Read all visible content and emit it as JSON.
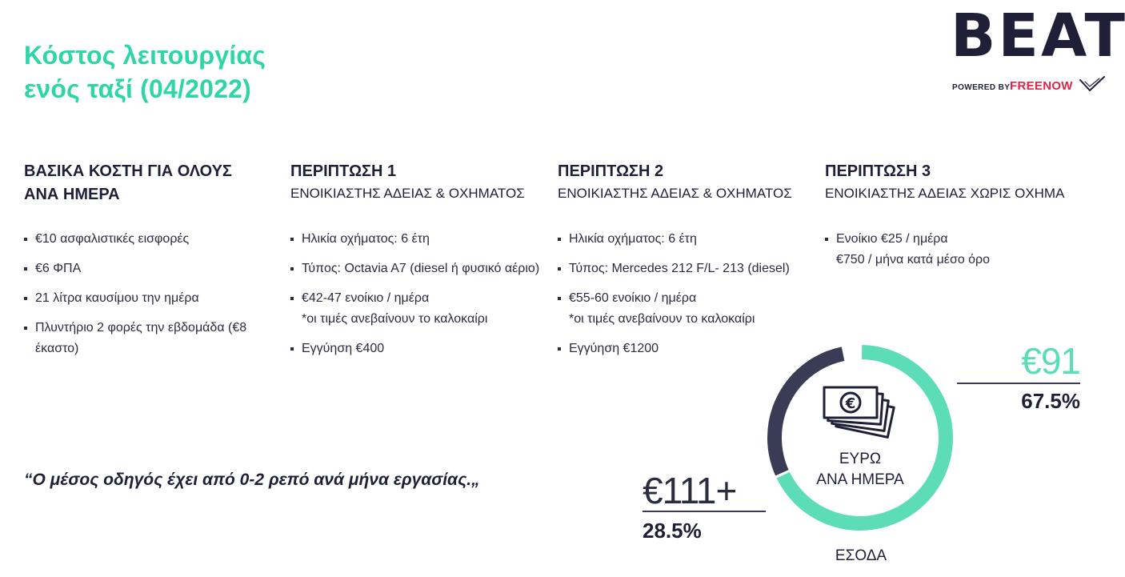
{
  "title": {
    "line1": "Κόστος λειτουργίας",
    "line2": "ενός ταξί (04/2022)"
  },
  "logo": {
    "wordmark": "BEAT",
    "powered_by": "POWERED BY",
    "partner": "FREENOW"
  },
  "columns": [
    {
      "heading": "ΒΑΣΙΚΑ ΚΟΣΤΗ ΓΙΑ ΟΛΟΥΣ",
      "subheading": "ΑΝΑ ΗΜΕΡΑ",
      "items": [
        {
          "text": "€10 ασφαλιστικές εισφορές",
          "note": ""
        },
        {
          "text": "€6 ΦΠΑ",
          "note": ""
        },
        {
          "text": "21 λίτρα καυσίμου την ημέρα",
          "note": ""
        },
        {
          "text": "Πλυντήριο 2 φορές την εβδομάδα (€8 έκαστο)",
          "note": ""
        }
      ]
    },
    {
      "heading": "ΠΕΡΙΠΤΩΣΗ 1",
      "subheading": "ΕΝΟΙΚΙΑΣΤΗΣ ΑΔΕΙΑΣ & ΟΧΗΜΑΤΟΣ",
      "items": [
        {
          "text": "Ηλικία οχήματος: 6 έτη",
          "note": ""
        },
        {
          "text": "Τύπος: Octavia A7 (diesel ή φυσικό αέριο)",
          "note": ""
        },
        {
          "text": "€42-47 ενοίκιο / ημέρα",
          "note": "*οι τιμές ανεβαίνουν το καλοκαίρι"
        },
        {
          "text": "Εγγύηση €400",
          "note": ""
        }
      ]
    },
    {
      "heading": "ΠΕΡΙΠΤΩΣΗ 2",
      "subheading": "ΕΝΟΙΚΙΑΣΤΗΣ ΑΔΕΙΑΣ & ΟΧΗΜΑΤΟΣ",
      "items": [
        {
          "text": "Ηλικία οχήματος: 6 έτη",
          "note": ""
        },
        {
          "text": "Τύπος:  Mercedes 212 F/L- 213 (diesel)",
          "note": ""
        },
        {
          "text": "€55-60 ενοίκιο / ημέρα",
          "note": "*οι τιμές ανεβαίνουν το καλοκαίρι"
        },
        {
          "text": "Εγγύηση €1200",
          "note": ""
        }
      ]
    },
    {
      "heading": "ΠΕΡΙΠΤΩΣΗ 3",
      "subheading": "ΕΝΟΙΚΙΑΣΤΗΣ ΑΔΕΙΑΣ ΧΩΡΙΣ ΟΧΗΜΑ",
      "items": [
        {
          "text": "Ενοίκιο €25 / ημέρα",
          "note": "€750 / μήνα κατά μέσο όρο"
        }
      ]
    }
  ],
  "quote": "“Ο μέσος οδηγός έχει από 0-2 ρεπό ανά μήνα εργασίας.„",
  "donut": {
    "center_line1": "ΕΥΡΩ",
    "center_line2": "ΑΝΑ ΗΜΕΡΑ",
    "bottom_label": "ΕΣΟΔΑ",
    "icon": "euro-banknotes-icon",
    "segments": [
      {
        "amount": "€91",
        "percent": "67.5%",
        "fraction": 0.675,
        "color": "#5ddcb8"
      },
      {
        "amount": "€111+",
        "percent": "28.5%",
        "fraction": 0.285,
        "color": "#3a3b55"
      }
    ]
  },
  "colors": {
    "accent": "#2ed5a7",
    "navy": "#1f2038",
    "freenow_red": "#e1244a"
  }
}
